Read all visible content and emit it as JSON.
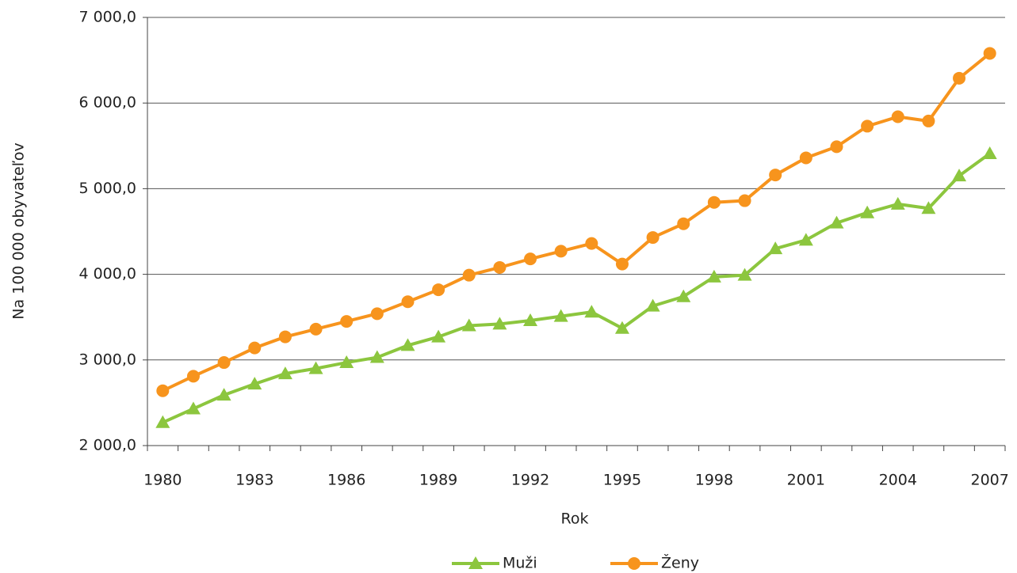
{
  "chart_data": {
    "type": "line",
    "x_label": "Rok",
    "y_label": "Na 100 000 obyvateľov",
    "categories": [
      "1980",
      null,
      null,
      "1983",
      null,
      null,
      "1986",
      null,
      null,
      "1989",
      null,
      null,
      "1992",
      null,
      null,
      "1995",
      null,
      null,
      "1998",
      null,
      null,
      "2001",
      null,
      null,
      "2004",
      null,
      null,
      "2007"
    ],
    "series": [
      {
        "name": "Muži",
        "color": "#8cc63e",
        "marker": "triangle",
        "values": [
          2270,
          2430,
          2590,
          2720,
          2840,
          2900,
          2970,
          3030,
          3170,
          3270,
          3400,
          3420,
          3460,
          3510,
          3560,
          3370,
          3630,
          3740,
          3970,
          3990,
          4300,
          4400,
          4600,
          4720,
          4820,
          4770,
          5150,
          5410
        ]
      },
      {
        "name": "Ženy",
        "color": "#f7941d",
        "marker": "circle",
        "values": [
          2640,
          2810,
          2970,
          3140,
          3270,
          3360,
          3450,
          3540,
          3680,
          3820,
          3990,
          4080,
          4180,
          4270,
          4360,
          4120,
          4430,
          4590,
          4840,
          4860,
          5160,
          5360,
          5490,
          5730,
          5840,
          5790,
          6290,
          6580
        ]
      }
    ],
    "ylim": [
      2000,
      7000
    ],
    "yticks": [
      {
        "value": 2000,
        "label": "2 000,0"
      },
      {
        "value": 3000,
        "label": "3 000,0"
      },
      {
        "value": 4000,
        "label": "4 000,0"
      },
      {
        "value": 5000,
        "label": "5 000,0"
      },
      {
        "value": 6000,
        "label": "6 000,0"
      },
      {
        "value": 7000,
        "label": "7 000,0"
      }
    ],
    "grid": true,
    "legend": "bottom"
  }
}
